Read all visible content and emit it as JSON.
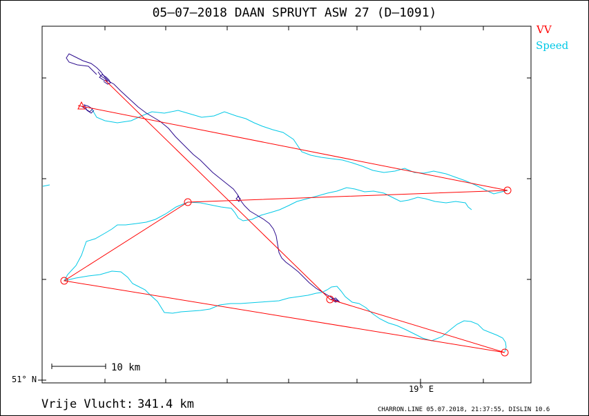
{
  "header": {
    "title": "05–07–2018    DAAN SPRUYT    ASW 27 (D–1091)"
  },
  "legend": {
    "items": [
      {
        "label": "VV",
        "color": "#ff0000"
      },
      {
        "label": "Speed",
        "color": "#00c8e6"
      }
    ]
  },
  "axes": {
    "lat_label": "51° N",
    "lon_label": "19° E"
  },
  "scale_bar": {
    "label": "10  km"
  },
  "summary": {
    "distance_label": "Vrije Vlucht:",
    "distance_value": "341.4 km"
  },
  "footer": {
    "text": "CHARRON.LINE 05.07.2018, 21:37:55, DISLIN 10.6"
  },
  "colors": {
    "task": "#ff0000",
    "track_climb": "#2a0a8c",
    "track_speed": "#00c8e6"
  }
}
